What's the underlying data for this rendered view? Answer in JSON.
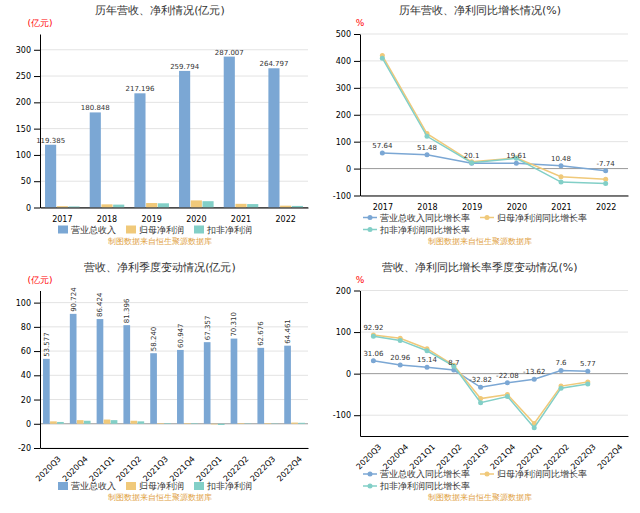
{
  "chart_data": [
    {
      "type": "bar",
      "title": "历年营收、净利情况(亿元)",
      "ylabel": "(亿元)",
      "categories": [
        "2017",
        "2018",
        "2019",
        "2020",
        "2021",
        "2022"
      ],
      "series": [
        {
          "name": "营业总收入",
          "color": "#7ba7d4",
          "values": [
            119.385,
            180.848,
            217.196,
            259.794,
            287.007,
            264.797
          ],
          "data_labels": true
        },
        {
          "name": "归母净利润",
          "color": "#f0c97a",
          "values": [
            2.5,
            6.0,
            8.5,
            13.5,
            7.0,
            3.5
          ]
        },
        {
          "name": "扣非净利润",
          "color": "#82cfc7",
          "values": [
            2.0,
            5.5,
            8.0,
            12.0,
            6.5,
            3.0
          ]
        }
      ],
      "ylim": [
        0,
        330
      ],
      "yticks": [
        0,
        50,
        100,
        150,
        200,
        250,
        300
      ],
      "grid": true,
      "legend": "bottom",
      "annotations": [
        {
          "text": "制图数据来自恒生聚源数据库",
          "color": "#e0a040"
        }
      ]
    },
    {
      "type": "line",
      "title": "历年营收、净利同比增长情况(%)",
      "ylabel": "%",
      "categories": [
        "2017",
        "2018",
        "2019",
        "2020",
        "2021",
        "2022"
      ],
      "series": [
        {
          "name": "营业总收入同比增长率",
          "color": "#7ba7d4",
          "marker": "circle",
          "values": [
            57.64,
            51.48,
            20.1,
            19.61,
            10.48,
            -7.74
          ],
          "data_labels": true
        },
        {
          "name": "归母净利润同比增长率",
          "color": "#f0c97a",
          "marker": "circle",
          "values": [
            420.0,
            130.0,
            25.0,
            40.0,
            -30.0,
            -39.9
          ]
        },
        {
          "name": "扣非净利润同比增长率",
          "color": "#82cfc7",
          "marker": "circle",
          "values": [
            410.0,
            120.0,
            22.0,
            38.0,
            -50.0,
            -55.0
          ]
        }
      ],
      "ylim": [
        -100,
        500
      ],
      "yticks": [
        -100,
        0,
        100,
        200,
        300,
        400,
        500
      ],
      "grid": true,
      "legend": "bottom",
      "annotations": [
        {
          "text": "制图数据来自恒生聚源数据库",
          "color": "#e0a040"
        }
      ]
    },
    {
      "type": "bar",
      "title": "营收、净利季度变动情况(亿元)",
      "ylabel": "(亿元)",
      "categories": [
        "2020Q3",
        "2020Q4",
        "2021Q1",
        "2021Q2",
        "2021Q3",
        "2021Q4",
        "2022Q1",
        "2022Q2",
        "2022Q3",
        "2022Q4"
      ],
      "series": [
        {
          "name": "营业总收入",
          "color": "#7ba7d4",
          "values": [
            53.577,
            90.724,
            86.424,
            81.396,
            58.24,
            60.947,
            67.357,
            70.31,
            62.676,
            64.461
          ],
          "data_labels": true,
          "value_labels": [
            "53.577",
            "90.724",
            "86.424",
            "81.396",
            "58.240",
            "60.947",
            "67.357",
            "70.310",
            "62.676",
            "64.461"
          ]
        },
        {
          "name": "归母净利润",
          "color": "#f0c97a",
          "values": [
            2.0,
            3.0,
            3.5,
            2.5,
            0.5,
            0.5,
            -0.5,
            0.5,
            0.5,
            1.0
          ]
        },
        {
          "name": "扣非净利润",
          "color": "#82cfc7",
          "values": [
            1.5,
            2.5,
            3.0,
            2.0,
            0.5,
            0.5,
            -1.0,
            0.3,
            0.3,
            0.8
          ]
        }
      ],
      "ylim": [
        -20,
        110
      ],
      "yticks": [
        -20,
        0,
        20,
        40,
        60,
        80,
        100
      ],
      "grid": true,
      "legend": "bottom",
      "annotations": [
        {
          "text": "制图数据来自恒生聚源数据库",
          "color": "#e0a040"
        }
      ]
    },
    {
      "type": "line",
      "title": "营收、净利同比增长率季度变动情况(%)",
      "ylabel": "%",
      "categories": [
        "2020Q3",
        "2020Q4",
        "2021Q1",
        "2021Q2",
        "2021Q3",
        "2021Q4",
        "2022Q1",
        "2022Q2",
        "2022Q3",
        "2022Q4"
      ],
      "series": [
        {
          "name": "营业总收入同比增长率",
          "color": "#7ba7d4",
          "marker": "circle",
          "values": [
            31.06,
            20.96,
            15.14,
            8.7,
            -32.82,
            -22.08,
            -13.62,
            7.6,
            5.77,
            null
          ],
          "data_labels": true
        },
        {
          "name": "归母净利润同比增长率",
          "color": "#f0c97a",
          "marker": "circle",
          "values": [
            92.92,
            85.0,
            60.0,
            20.0,
            -60.0,
            -50.0,
            -120.0,
            -30.0,
            -20.0,
            null
          ],
          "data_labels": true,
          "value_labels": [
            "92.92",
            null,
            null,
            null,
            null,
            null,
            null,
            null,
            null,
            null
          ]
        },
        {
          "name": "扣非净利润同比增长率",
          "color": "#82cfc7",
          "marker": "circle",
          "values": [
            90.0,
            80.0,
            55.0,
            18.0,
            -70.0,
            -55.0,
            -130.0,
            -35.0,
            -25.0,
            null
          ]
        }
      ],
      "ylim": [
        -150,
        200
      ],
      "yticks": [
        -100,
        0,
        100,
        200
      ],
      "grid": true,
      "legend": "bottom",
      "annotations": [
        {
          "text": "制图数据来自恒生聚源数据库",
          "color": "#e0a040"
        }
      ]
    }
  ]
}
